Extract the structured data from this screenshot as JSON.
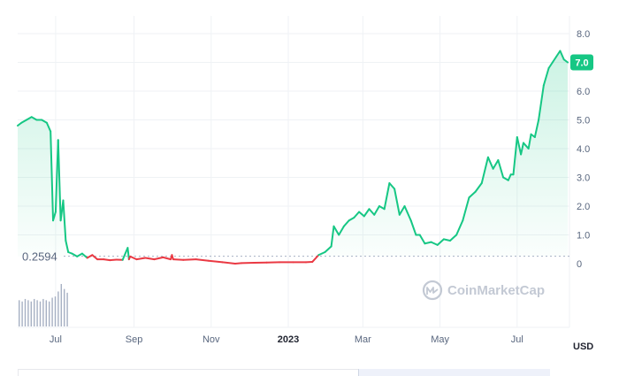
{
  "chart_data": {
    "type": "line",
    "y_ticks": [
      "8.0",
      "7.0",
      "6.0",
      "5.0",
      "4.0",
      "3.0",
      "2.0",
      "1.0",
      "0"
    ],
    "ylim": [
      0,
      8
    ],
    "x_ticks": [
      "Jul",
      "Sep",
      "Nov",
      "2023",
      "Mar",
      "May",
      "Jul"
    ],
    "x_tick_dates": [
      "2022-07-01",
      "2022-09-01",
      "2022-11-01",
      "2023-01-01",
      "2023-03-01",
      "2023-05-01",
      "2023-07-01"
    ],
    "xlim": [
      "2022-06-01",
      "2023-08-10"
    ],
    "unit_label": "USD",
    "reference_value": 0.2594,
    "reference_label": "0.2594",
    "current_value": 7.0,
    "current_label": "7.0",
    "colors": {
      "up": "#16c784",
      "down": "#ea3943",
      "badge": "#16c784",
      "grid": "#eff2f5"
    },
    "watermark": "CoinMarketCap",
    "grid": true,
    "series": [
      {
        "x": [
          "2022-06-01",
          "2022-06-04",
          "2022-06-08",
          "2022-06-12",
          "2022-06-16",
          "2022-06-20",
          "2022-06-24",
          "2022-06-27",
          "2022-06-29",
          "2022-07-01",
          "2022-07-03",
          "2022-07-05",
          "2022-07-07",
          "2022-07-09",
          "2022-07-11",
          "2022-07-14",
          "2022-07-18",
          "2022-07-22",
          "2022-07-26",
          "2022-07-30",
          "2022-08-03",
          "2022-08-08",
          "2022-08-13",
          "2022-08-18",
          "2022-08-23",
          "2022-08-27",
          "2022-08-28",
          "2022-08-29",
          "2022-09-03",
          "2022-09-10",
          "2022-09-17",
          "2022-09-24",
          "2022-09-30",
          "2022-10-01",
          "2022-10-02",
          "2022-10-10",
          "2022-10-20",
          "2022-10-30",
          "2022-11-10",
          "2022-11-20",
          "2022-11-25",
          "2022-12-05",
          "2022-12-15",
          "2022-12-25",
          "2023-01-05",
          "2023-01-15",
          "2023-01-20",
          "2023-01-25",
          "2023-01-30",
          "2023-02-04",
          "2023-02-06",
          "2023-02-10",
          "2023-02-14",
          "2023-02-18",
          "2023-02-22",
          "2023-02-26",
          "2023-03-02",
          "2023-03-06",
          "2023-03-10",
          "2023-03-14",
          "2023-03-18",
          "2023-03-22",
          "2023-03-26",
          "2023-03-30",
          "2023-04-03",
          "2023-04-05",
          "2023-04-08",
          "2023-04-12",
          "2023-04-15",
          "2023-04-19",
          "2023-04-24",
          "2023-04-29",
          "2023-05-04",
          "2023-05-09",
          "2023-05-14",
          "2023-05-19",
          "2023-05-24",
          "2023-05-29",
          "2023-06-03",
          "2023-06-08",
          "2023-06-12",
          "2023-06-16",
          "2023-06-20",
          "2023-06-24",
          "2023-06-26",
          "2023-06-28",
          "2023-07-01",
          "2023-07-04",
          "2023-07-06",
          "2023-07-08",
          "2023-07-10",
          "2023-07-12",
          "2023-07-15",
          "2023-07-18",
          "2023-07-22",
          "2023-07-26",
          "2023-07-29",
          "2023-08-01",
          "2023-08-04",
          "2023-08-07",
          "2023-08-10"
        ],
        "y": [
          4.8,
          4.9,
          5.0,
          5.1,
          5.0,
          5.0,
          4.9,
          4.6,
          1.5,
          1.8,
          4.3,
          1.5,
          2.2,
          0.8,
          0.4,
          0.35,
          0.25,
          0.35,
          0.2,
          0.3,
          0.15,
          0.15,
          0.12,
          0.14,
          0.13,
          0.55,
          0.15,
          0.25,
          0.15,
          0.2,
          0.15,
          0.22,
          0.15,
          0.3,
          0.15,
          0.13,
          0.15,
          0.1,
          0.05,
          0.0,
          0.02,
          0.03,
          0.04,
          0.05,
          0.05,
          0.05,
          0.06,
          0.3,
          0.4,
          0.6,
          1.3,
          1.0,
          1.3,
          1.5,
          1.6,
          1.8,
          1.65,
          1.9,
          1.7,
          2.0,
          1.9,
          2.8,
          2.6,
          1.7,
          2.0,
          1.8,
          1.5,
          1.0,
          1.0,
          0.7,
          0.75,
          0.65,
          0.85,
          0.8,
          1.0,
          1.5,
          2.3,
          2.5,
          2.8,
          3.7,
          3.3,
          3.6,
          3.0,
          2.9,
          3.1,
          3.1,
          4.4,
          3.8,
          4.2,
          4.1,
          4.0,
          4.5,
          4.4,
          5.0,
          6.2,
          6.8,
          7.0,
          7.2,
          7.4,
          7.1,
          7.0
        ]
      }
    ],
    "volume": [
      2.1,
      2.0,
      2.2,
      2.1,
      2.0,
      2.2,
      2.1,
      2.0,
      2.2,
      2.1,
      2.0,
      2.3,
      2.4,
      2.8,
      3.4,
      3.0,
      2.7
    ]
  }
}
